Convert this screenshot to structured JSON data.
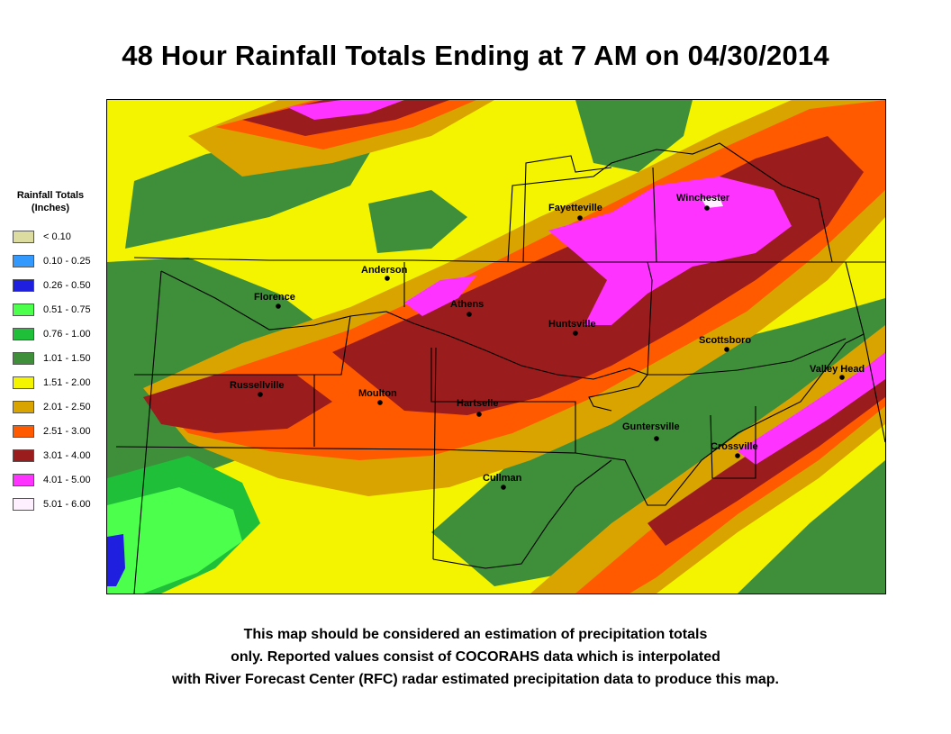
{
  "title": "48 Hour Rainfall Totals Ending at 7 AM on 04/30/2014",
  "legend": {
    "title_line1": "Rainfall Totals",
    "title_line2": "(Inches)",
    "items": [
      {
        "label": "< 0.10",
        "color": "#dcdca0"
      },
      {
        "label": "0.10 - 0.25",
        "color": "#3399ff"
      },
      {
        "label": "0.26 - 0.50",
        "color": "#1f1fe0"
      },
      {
        "label": "0.51 - 0.75",
        "color": "#4dff4d"
      },
      {
        "label": "0.76 - 1.00",
        "color": "#1fbf3a"
      },
      {
        "label": "1.01 - 1.50",
        "color": "#3f8f3a"
      },
      {
        "label": "1.51 - 2.00",
        "color": "#f4f400"
      },
      {
        "label": "2.01 - 2.50",
        "color": "#d9a400"
      },
      {
        "label": "2.51 - 3.00",
        "color": "#ff5a00"
      },
      {
        "label": "3.01 - 4.00",
        "color": "#9b1c1c"
      },
      {
        "label": "4.01 - 5.00",
        "color": "#ff33ff"
      },
      {
        "label": "5.01 - 6.00",
        "color": "#fff0ff"
      }
    ]
  },
  "cities": [
    {
      "name": "Fayetteville"
    },
    {
      "name": "Winchester"
    },
    {
      "name": "Anderson"
    },
    {
      "name": "Florence"
    },
    {
      "name": "Athens"
    },
    {
      "name": "Huntsville"
    },
    {
      "name": "Scottsboro"
    },
    {
      "name": "Valley Head"
    },
    {
      "name": "Russellville"
    },
    {
      "name": "Moulton"
    },
    {
      "name": "Hartselle"
    },
    {
      "name": "Guntersville"
    },
    {
      "name": "Crossville"
    },
    {
      "name": "Cullman"
    }
  ],
  "disclaimer": {
    "line1": "This map should be considered an estimation of precipitation totals",
    "line2": "only.  Reported values consist of COCORAHS data which is  interpolated",
    "line3": "with River Forecast Center (RFC) radar estimated precipitation data to produce this map."
  }
}
